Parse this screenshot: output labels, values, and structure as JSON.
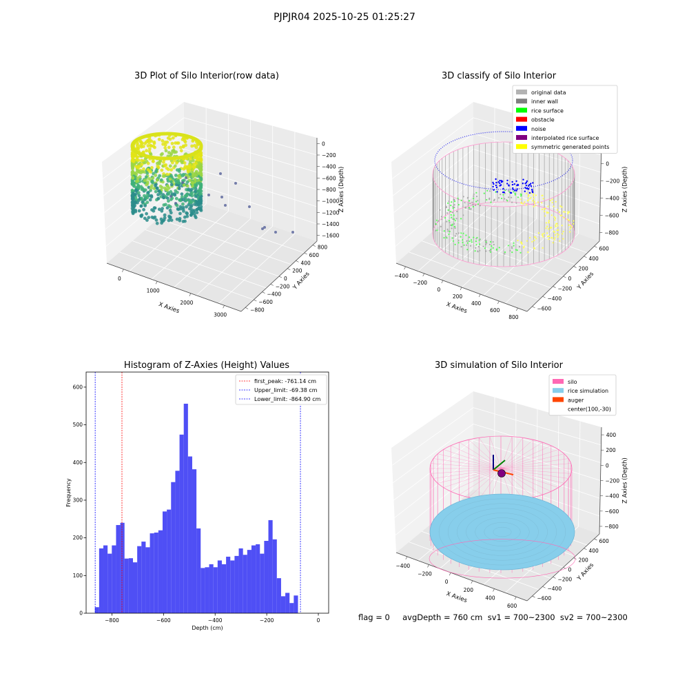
{
  "figure": {
    "title": "PJPJR04 2025-10-25 01:25:27"
  },
  "status_line": "flag = 0     avgDepth = 760 cm  sv1 = 700~2300  sv2 = 700~2300",
  "chart_data": [
    {
      "type": "scatter",
      "title": "3D Plot of Silo Interior(row data)",
      "xlabel": "X Axies",
      "ylabel": "Y Axies",
      "zlabel": "Z Axies (Depth)",
      "x_ticks": [
        "0",
        "1000",
        "2000",
        "3000"
      ],
      "y_ticks": [
        "800",
        "600",
        "400",
        "200",
        "0",
        "−200",
        "−400",
        "−600",
        "−800"
      ],
      "z_ticks": [
        "0",
        "−200",
        "−400",
        "−600",
        "−800",
        "−1000",
        "−1200",
        "−1400",
        "−1600"
      ],
      "colormap": [
        "#2a8c8b",
        "#3fb07a",
        "#9bd645",
        "#e2e418"
      ],
      "outliers_color": "#56629a"
    },
    {
      "type": "scatter",
      "title": "3D classify of Silo Interior",
      "xlabel": "X Axies",
      "ylabel": "Y Axies",
      "zlabel": "Z Axies (Depth)",
      "x_ticks": [
        "−400",
        "−200",
        "0",
        "200",
        "400",
        "600",
        "800"
      ],
      "y_ticks": [
        "600",
        "400",
        "200",
        "0",
        "−200",
        "−400",
        "−600"
      ],
      "z_ticks": [
        "200",
        "0",
        "−200",
        "−400",
        "−600",
        "−800"
      ],
      "legend": [
        {
          "label": "original data",
          "color": "#b3b3b3"
        },
        {
          "label": "inner wall",
          "color": "#808080"
        },
        {
          "label": "rice surface",
          "color": "#00ff00"
        },
        {
          "label": "obstacle",
          "color": "#ff0000"
        },
        {
          "label": "noise",
          "color": "#0000ff"
        },
        {
          "label": "interpolated rice surface",
          "color": "#800080"
        },
        {
          "label": "symmetric generated points",
          "color": "#ffff00"
        }
      ]
    },
    {
      "type": "bar",
      "title": "Histogram of Z-Axies (Height) Values",
      "xlabel": "Depth (cm)",
      "ylabel": "Frequency",
      "xlim": [
        -900,
        40
      ],
      "ylim": [
        0,
        640
      ],
      "x_ticks": [
        -800,
        -600,
        -400,
        -200,
        0
      ],
      "y_ticks": [
        0,
        100,
        200,
        300,
        400,
        500,
        600
      ],
      "bin_start": -866,
      "bin_width": 16.4,
      "values": [
        16,
        172,
        180,
        158,
        180,
        234,
        240,
        145,
        146,
        135,
        178,
        190,
        175,
        212,
        214,
        220,
        270,
        275,
        348,
        378,
        474,
        556,
        416,
        382,
        225,
        120,
        122,
        130,
        122,
        140,
        130,
        150,
        140,
        152,
        172,
        155,
        168,
        180,
        183,
        158,
        192,
        247,
        196,
        93,
        45,
        54,
        27,
        47
      ],
      "bar_color": "#4b4bf5",
      "lines": [
        {
          "label": "first_peak: -761.14 cm",
          "x": -761.14,
          "color": "#ff0000"
        },
        {
          "label": "Upper_limit: -69.38 cm",
          "x": -69.38,
          "color": "#0000ff"
        },
        {
          "label": "Lower_limit: -864.90 cm",
          "x": -864.9,
          "color": "#0000ff"
        }
      ]
    },
    {
      "type": "scatter",
      "title": "3D simulation of Silo Interior",
      "xlabel": "X Axies",
      "ylabel": "Y Axies",
      "zlabel": "Z Axies (Depth)",
      "x_ticks": [
        "−400",
        "−200",
        "0",
        "200",
        "400",
        "600"
      ],
      "y_ticks": [
        "600",
        "400",
        "200",
        "0",
        "−200",
        "−400",
        "−600"
      ],
      "z_ticks": [
        "400",
        "200",
        "0",
        "−200",
        "−400",
        "−600",
        "−800"
      ],
      "legend": [
        {
          "label": "silo",
          "color": "#ff69b4"
        },
        {
          "label": "rice simulation",
          "color": "#87ceeb"
        },
        {
          "label": "auger",
          "color": "#ff4500"
        },
        {
          "label": "center(100,-30)",
          "color": ""
        }
      ]
    }
  ]
}
